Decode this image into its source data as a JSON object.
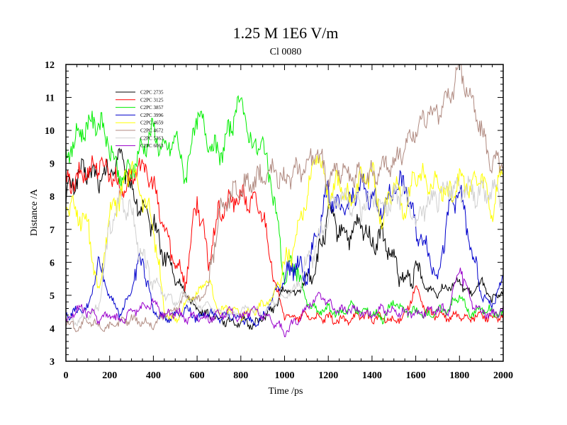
{
  "chart_data": {
    "type": "line",
    "title": "1.25 M 1E6 V/m",
    "subtitle": "Cl 0080",
    "xlabel": "Time /ps",
    "ylabel": "Distance /A",
    "xlim": [
      0,
      2000
    ],
    "ylim": [
      3,
      12
    ],
    "xticks": [
      0,
      200,
      400,
      600,
      800,
      1000,
      1200,
      1400,
      1600,
      1800,
      2000
    ],
    "yticks": [
      3,
      4,
      5,
      6,
      7,
      8,
      9,
      10,
      11,
      12
    ],
    "legend_position": "top-left",
    "series": [
      {
        "name": "C2PC 2735",
        "color": "#000000",
        "x": [
          0,
          50,
          100,
          150,
          200,
          250,
          300,
          350,
          400,
          450,
          500,
          550,
          600,
          650,
          700,
          750,
          800,
          850,
          900,
          950,
          1000,
          1050,
          1100,
          1150,
          1200,
          1250,
          1300,
          1350,
          1400,
          1450,
          1500,
          1550,
          1600,
          1650,
          1700,
          1750,
          1800,
          1850,
          1900,
          1950,
          2000
        ],
        "values": [
          8.0,
          8.6,
          8.8,
          8.5,
          8.7,
          9.3,
          8.2,
          7.5,
          7.2,
          6.2,
          5.6,
          5.0,
          4.6,
          4.4,
          4.3,
          4.2,
          4.2,
          4.1,
          4.3,
          4.6,
          5.2,
          5.0,
          5.5,
          6.0,
          7.5,
          7.0,
          6.8,
          7.2,
          6.6,
          6.8,
          6.0,
          5.4,
          5.8,
          5.2,
          5.1,
          5.3,
          5.4,
          5.0,
          5.4,
          4.8,
          5.2
        ]
      },
      {
        "name": "C2PC 3125",
        "color": "#ff0000",
        "x": [
          0,
          50,
          100,
          150,
          200,
          250,
          300,
          350,
          400,
          450,
          500,
          550,
          600,
          650,
          700,
          750,
          800,
          850,
          900,
          950,
          1000,
          1050,
          1100,
          1150,
          1200,
          1250,
          1300,
          1350,
          1400,
          1450,
          1500,
          1550,
          1600,
          1650,
          1700,
          1750,
          1800,
          1850,
          1900,
          1950,
          2000
        ],
        "values": [
          8.3,
          8.5,
          8.8,
          9.0,
          8.8,
          8.2,
          8.5,
          9.0,
          8.3,
          7.0,
          6.0,
          5.5,
          8.0,
          6.0,
          7.5,
          7.8,
          8.0,
          7.8,
          7.6,
          5.5,
          4.4,
          4.3,
          4.4,
          4.3,
          4.3,
          4.2,
          4.3,
          4.4,
          4.3,
          4.3,
          4.2,
          4.4,
          5.2,
          4.5,
          4.4,
          4.3,
          4.4,
          4.3,
          4.4,
          4.3,
          4.3
        ]
      },
      {
        "name": "C2PC 3857",
        "color": "#00ee00",
        "x": [
          0,
          50,
          100,
          150,
          200,
          250,
          300,
          350,
          400,
          450,
          500,
          550,
          600,
          650,
          700,
          750,
          800,
          850,
          900,
          950,
          1000,
          1050,
          1100,
          1150,
          1200,
          1250,
          1300,
          1350,
          1400,
          1450,
          1500,
          1550,
          1600,
          1650,
          1700,
          1750,
          1800,
          1850,
          1900,
          1950,
          2000
        ],
        "values": [
          9.2,
          9.8,
          10.2,
          10.3,
          9.5,
          8.5,
          8.8,
          9.5,
          10.0,
          9.3,
          9.8,
          8.6,
          10.5,
          9.8,
          9.2,
          10.0,
          11.0,
          9.5,
          9.6,
          8.0,
          5.5,
          6.0,
          4.8,
          4.5,
          4.6,
          4.4,
          4.7,
          4.5,
          4.5,
          4.3,
          4.8,
          4.5,
          4.5,
          4.4,
          4.5,
          4.6,
          5.0,
          4.4,
          4.6,
          4.5,
          4.4
        ]
      },
      {
        "name": "C2PC 3996",
        "color": "#0000cc",
        "x": [
          0,
          50,
          100,
          150,
          200,
          250,
          300,
          350,
          400,
          450,
          500,
          550,
          600,
          650,
          700,
          750,
          800,
          850,
          900,
          950,
          1000,
          1050,
          1100,
          1150,
          1200,
          1250,
          1300,
          1350,
          1400,
          1450,
          1500,
          1550,
          1600,
          1650,
          1700,
          1750,
          1800,
          1850,
          1900,
          1950,
          2000
        ],
        "values": [
          4.4,
          4.5,
          4.6,
          6.0,
          5.0,
          4.4,
          5.2,
          6.2,
          4.5,
          4.3,
          4.4,
          4.6,
          4.3,
          4.5,
          4.3,
          4.4,
          4.3,
          4.2,
          4.3,
          5.0,
          5.5,
          6.0,
          5.5,
          7.0,
          8.2,
          7.5,
          7.8,
          8.3,
          8.0,
          7.5,
          8.3,
          8.4,
          7.0,
          6.5,
          5.5,
          7.5,
          8.2,
          6.5,
          5.0,
          4.7,
          5.5
        ]
      },
      {
        "name": "C2PC 4659",
        "color": "#ffff00",
        "x": [
          0,
          50,
          100,
          150,
          200,
          250,
          300,
          350,
          400,
          450,
          500,
          550,
          600,
          650,
          700,
          750,
          800,
          850,
          900,
          950,
          1000,
          1050,
          1100,
          1150,
          1200,
          1250,
          1300,
          1350,
          1400,
          1450,
          1500,
          1550,
          1600,
          1650,
          1700,
          1750,
          1800,
          1850,
          1900,
          1950,
          2000
        ],
        "values": [
          7.8,
          7.5,
          7.2,
          5.0,
          7.5,
          8.0,
          9.0,
          8.0,
          7.2,
          4.5,
          4.2,
          4.8,
          5.0,
          5.5,
          4.5,
          4.6,
          4.4,
          4.5,
          4.7,
          5.0,
          6.0,
          6.5,
          8.0,
          9.5,
          8.0,
          8.5,
          7.8,
          8.5,
          8.7,
          7.2,
          8.5,
          7.5,
          8.7,
          8.5,
          8.4,
          8.0,
          8.5,
          8.3,
          8.6,
          7.5,
          9.0
        ]
      },
      {
        "name": "C2PC 4672",
        "color": "#b08a80",
        "x": [
          0,
          50,
          100,
          150,
          200,
          250,
          300,
          350,
          400,
          450,
          500,
          550,
          600,
          650,
          700,
          750,
          800,
          850,
          900,
          950,
          1000,
          1050,
          1100,
          1150,
          1200,
          1250,
          1300,
          1350,
          1400,
          1450,
          1500,
          1550,
          1600,
          1650,
          1700,
          1750,
          1800,
          1850,
          1900,
          1950,
          2000
        ],
        "values": [
          4.2,
          4.0,
          4.2,
          4.1,
          4.0,
          4.2,
          4.3,
          4.2,
          4.1,
          4.4,
          4.6,
          5.0,
          4.8,
          5.2,
          7.5,
          8.0,
          8.3,
          8.4,
          8.6,
          8.8,
          8.5,
          8.7,
          9.0,
          9.3,
          8.6,
          8.9,
          8.5,
          8.7,
          8.6,
          8.9,
          9.0,
          9.5,
          10.0,
          10.5,
          10.5,
          11.0,
          11.9,
          11.0,
          10.0,
          9.0,
          9.0
        ]
      },
      {
        "name": "C2PC 5363",
        "color": "#d0d0d0",
        "x": [
          0,
          50,
          100,
          150,
          200,
          250,
          300,
          350,
          400,
          450,
          500,
          550,
          600,
          650,
          700,
          750,
          800,
          850,
          900,
          950,
          1000,
          1050,
          1100,
          1150,
          1200,
          1250,
          1300,
          1350,
          1400,
          1450,
          1500,
          1550,
          1600,
          1650,
          1700,
          1750,
          1800,
          1850,
          1900,
          1950,
          2000
        ],
        "values": [
          4.3,
          4.2,
          4.4,
          4.6,
          7.0,
          8.0,
          7.5,
          6.0,
          5.5,
          5.0,
          4.8,
          5.0,
          4.6,
          4.8,
          4.5,
          4.4,
          4.5,
          4.6,
          4.4,
          4.8,
          5.0,
          5.2,
          6.0,
          6.5,
          7.5,
          8.0,
          7.8,
          7.6,
          8.0,
          7.7,
          7.9,
          8.2,
          7.2,
          7.8,
          8.0,
          8.3,
          8.1,
          8.2,
          8.0,
          8.1,
          8.0
        ]
      },
      {
        "name": "C2PC 6063",
        "color": "#9900cc",
        "x": [
          0,
          50,
          100,
          150,
          200,
          250,
          300,
          350,
          400,
          450,
          500,
          550,
          600,
          650,
          700,
          750,
          800,
          850,
          900,
          950,
          1000,
          1050,
          1100,
          1150,
          1200,
          1250,
          1300,
          1350,
          1400,
          1450,
          1500,
          1550,
          1600,
          1650,
          1700,
          1750,
          1800,
          1850,
          1900,
          1950,
          2000
        ],
        "values": [
          4.2,
          4.6,
          4.5,
          4.3,
          4.4,
          4.2,
          4.5,
          4.6,
          4.8,
          4.4,
          4.5,
          4.3,
          4.4,
          4.3,
          4.4,
          4.5,
          4.3,
          4.6,
          4.4,
          4.2,
          3.9,
          4.2,
          4.6,
          5.0,
          4.8,
          4.5,
          4.6,
          4.5,
          4.4,
          4.6,
          4.5,
          4.5,
          4.4,
          4.5,
          4.6,
          4.5,
          6.0,
          4.8,
          4.5,
          4.4,
          4.6
        ]
      }
    ]
  }
}
